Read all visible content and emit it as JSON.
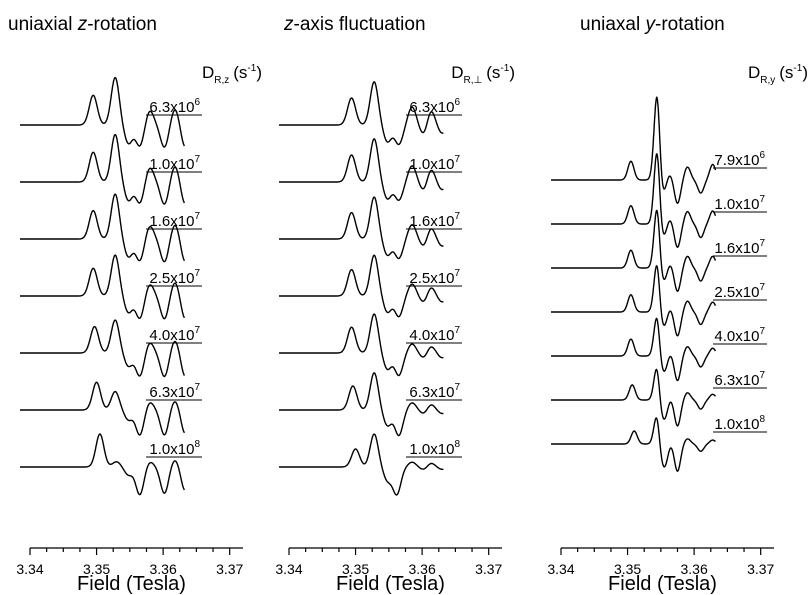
{
  "chart_data": [
    {
      "type": "line",
      "title": "uniaxial z-rotation",
      "title_parts": {
        "pre": "uniaxial ",
        "ital": "z",
        "post": "-rotation"
      },
      "xlabel": "Field (Tesla)",
      "xlim": [
        3.34,
        3.372
      ],
      "x_ticks": [
        "3.34",
        "3.35",
        "3.36",
        "3.37"
      ],
      "param_label": {
        "main": "D",
        "sub": "R,z",
        "unit": "(s",
        "unit_exp": "-1",
        "close": ")"
      },
      "series": [
        {
          "label": {
            "mant": "6.3x10",
            "exp": "6"
          },
          "peaks": [
            [
              3.3495,
              0.45
            ],
            [
              3.3528,
              0.72
            ],
            [
              3.3548,
              -0.28
            ],
            [
              3.3565,
              -0.32
            ],
            [
              3.358,
              0.22
            ],
            [
              3.3602,
              -0.34
            ],
            [
              3.3618,
              0.25
            ],
            [
              3.3633,
              -0.34
            ]
          ]
        },
        {
          "label": {
            "mant": "1.0x10",
            "exp": "7"
          },
          "peaks": [
            [
              3.3495,
              0.45
            ],
            [
              3.3528,
              0.72
            ],
            [
              3.3548,
              -0.28
            ],
            [
              3.3565,
              -0.32
            ],
            [
              3.358,
              0.22
            ],
            [
              3.3602,
              -0.34
            ],
            [
              3.3618,
              0.25
            ],
            [
              3.3633,
              -0.34
            ]
          ]
        },
        {
          "label": {
            "mant": "1.6x10",
            "exp": "7"
          },
          "peaks": [
            [
              3.3495,
              0.43
            ],
            [
              3.3528,
              0.68
            ],
            [
              3.3548,
              -0.27
            ],
            [
              3.3565,
              -0.33
            ],
            [
              3.358,
              0.2
            ],
            [
              3.3602,
              -0.35
            ],
            [
              3.3618,
              0.23
            ],
            [
              3.3633,
              -0.35
            ]
          ]
        },
        {
          "label": {
            "mant": "2.5x10",
            "exp": "7"
          },
          "peaks": [
            [
              3.3495,
              0.42
            ],
            [
              3.3528,
              0.62
            ],
            [
              3.3548,
              -0.25
            ],
            [
              3.3565,
              -0.34
            ],
            [
              3.358,
              0.18
            ],
            [
              3.3602,
              -0.35
            ],
            [
              3.3618,
              0.22
            ],
            [
              3.3633,
              -0.35
            ]
          ]
        },
        {
          "label": {
            "mant": "4.0x10",
            "exp": "7"
          },
          "peaks": [
            [
              3.3497,
              0.4
            ],
            [
              3.3528,
              0.5
            ],
            [
              3.3548,
              -0.2
            ],
            [
              3.3565,
              -0.35
            ],
            [
              3.358,
              0.16
            ],
            [
              3.3602,
              -0.36
            ],
            [
              3.3618,
              0.2
            ],
            [
              3.3633,
              -0.36
            ]
          ]
        },
        {
          "label": {
            "mant": "6.3x10",
            "exp": "7"
          },
          "peaks": [
            [
              3.35,
              0.42
            ],
            [
              3.3528,
              0.28
            ],
            [
              3.3548,
              -0.15
            ],
            [
              3.3565,
              -0.38
            ],
            [
              3.358,
              0.12
            ],
            [
              3.3602,
              -0.38
            ],
            [
              3.3618,
              0.15
            ],
            [
              3.3633,
              -0.36
            ]
          ]
        },
        {
          "label": {
            "mant": "1.0x10",
            "exp": "8"
          },
          "peaks": [
            [
              3.3505,
              0.5
            ],
            [
              3.353,
              0.08
            ],
            [
              3.3548,
              -0.12
            ],
            [
              3.3565,
              -0.42
            ],
            [
              3.358,
              0.08
            ],
            [
              3.3602,
              -0.4
            ],
            [
              3.3618,
              0.12
            ],
            [
              3.3633,
              -0.36
            ]
          ]
        }
      ]
    },
    {
      "type": "line",
      "title": "z-axis fluctuation",
      "title_parts": {
        "pre": "",
        "ital": "z",
        "post": "-axis fluctuation"
      },
      "xlabel": "Field (Tesla)",
      "xlim": [
        3.34,
        3.372
      ],
      "x_ticks": [
        "3.34",
        "3.35",
        "3.36",
        "3.37"
      ],
      "param_label": {
        "main": "D",
        "sub": "R,⊥",
        "unit": "(s",
        "unit_exp": "-1",
        "close": ")"
      },
      "series": [
        {
          "label": {
            "mant": "6.3x10",
            "exp": "6"
          },
          "peaks": [
            [
              3.3494,
              0.45
            ],
            [
              3.3528,
              0.72
            ],
            [
              3.3548,
              -0.28
            ],
            [
              3.3565,
              -0.32
            ],
            [
              3.3585,
              0.3
            ],
            [
              3.3613,
              0.26
            ],
            [
              3.3603,
              -0.18
            ],
            [
              3.363,
              -0.14
            ]
          ]
        },
        {
          "label": {
            "mant": "1.0x10",
            "exp": "7"
          },
          "peaks": [
            [
              3.3494,
              0.45
            ],
            [
              3.3528,
              0.72
            ],
            [
              3.3548,
              -0.28
            ],
            [
              3.3565,
              -0.3
            ],
            [
              3.3585,
              0.27
            ],
            [
              3.3613,
              0.23
            ],
            [
              3.3603,
              -0.16
            ],
            [
              3.363,
              -0.13
            ]
          ]
        },
        {
          "label": {
            "mant": "1.6x10",
            "exp": "7"
          },
          "peaks": [
            [
              3.3494,
              0.44
            ],
            [
              3.3528,
              0.7
            ],
            [
              3.3548,
              -0.27
            ],
            [
              3.3565,
              -0.32
            ],
            [
              3.3585,
              0.24
            ],
            [
              3.3613,
              0.2
            ],
            [
              3.3603,
              -0.14
            ],
            [
              3.363,
              -0.12
            ]
          ]
        },
        {
          "label": {
            "mant": "2.5x10",
            "exp": "7"
          },
          "peaks": [
            [
              3.3494,
              0.44
            ],
            [
              3.3528,
              0.68
            ],
            [
              3.3548,
              -0.27
            ],
            [
              3.3565,
              -0.34
            ],
            [
              3.3585,
              0.2
            ],
            [
              3.3613,
              0.16
            ],
            [
              3.3603,
              -0.12
            ],
            [
              3.363,
              -0.1
            ]
          ]
        },
        {
          "label": {
            "mant": "4.0x10",
            "exp": "7"
          },
          "peaks": [
            [
              3.3494,
              0.43
            ],
            [
              3.3528,
              0.65
            ],
            [
              3.3548,
              -0.27
            ],
            [
              3.3565,
              -0.37
            ],
            [
              3.3585,
              0.15
            ],
            [
              3.3613,
              0.12
            ],
            [
              3.3603,
              -0.09
            ],
            [
              3.363,
              -0.08
            ]
          ]
        },
        {
          "label": {
            "mant": "6.3x10",
            "exp": "7"
          },
          "peaks": [
            [
              3.3496,
              0.4
            ],
            [
              3.3528,
              0.62
            ],
            [
              3.3548,
              -0.26
            ],
            [
              3.3565,
              -0.42
            ],
            [
              3.3585,
              0.12
            ],
            [
              3.3613,
              0.1
            ],
            [
              3.3603,
              -0.07
            ],
            [
              3.363,
              -0.06
            ]
          ]
        },
        {
          "label": {
            "mant": "1.0x10",
            "exp": "8"
          },
          "peaks": [
            [
              3.35,
              0.3
            ],
            [
              3.3528,
              0.55
            ],
            [
              3.3548,
              -0.22
            ],
            [
              3.3562,
              -0.45
            ],
            [
              3.3585,
              0.08
            ],
            [
              3.3613,
              0.07
            ],
            [
              3.3603,
              -0.05
            ],
            [
              3.363,
              -0.04
            ]
          ]
        }
      ]
    },
    {
      "type": "line",
      "title": "uniaxal y-rotation",
      "title_parts": {
        "pre": "uniaxal ",
        "ital": "y",
        "post": "-rotation"
      },
      "xlabel": "Field (Tesla)",
      "xlim": [
        3.34,
        3.372
      ],
      "x_ticks": [
        "3.34",
        "3.35",
        "3.36",
        "3.37"
      ],
      "param_label": {
        "main": "D",
        "sub": "R,y",
        "unit": "(s",
        "unit_exp": "-1",
        "close": ")"
      },
      "series": [
        {
          "label": {
            "mant": "7.9x10",
            "exp": "6"
          },
          "peaks": [
            [
              3.3505,
              0.72
            ],
            [
              3.3545,
              4.2
            ],
            [
              3.3549,
              -1.8
            ],
            [
              3.3552,
              0.35
            ],
            [
              3.3557,
              -0.4
            ],
            [
              3.3562,
              0.35
            ],
            [
              3.3575,
              -0.9
            ],
            [
              3.359,
              0.5
            ],
            [
              3.361,
              -0.5
            ],
            [
              3.3628,
              0.6
            ],
            [
              3.3643,
              -0.5
            ]
          ]
        },
        {
          "label": {
            "mant": "1.0x10",
            "exp": "7"
          },
          "peaks": [
            [
              3.3505,
              0.7
            ],
            [
              3.3545,
              3.6
            ],
            [
              3.3549,
              -1.6
            ],
            [
              3.3552,
              0.33
            ],
            [
              3.3557,
              -0.45
            ],
            [
              3.3562,
              0.33
            ],
            [
              3.3575,
              -0.9
            ],
            [
              3.359,
              0.48
            ],
            [
              3.361,
              -0.52
            ],
            [
              3.3628,
              0.5
            ],
            [
              3.3643,
              -0.46
            ]
          ]
        },
        {
          "label": {
            "mant": "1.6x10",
            "exp": "7"
          },
          "peaks": [
            [
              3.3505,
              0.68
            ],
            [
              3.3545,
              3.0
            ],
            [
              3.3549,
              -1.4
            ],
            [
              3.3552,
              0.3
            ],
            [
              3.3557,
              -0.5
            ],
            [
              3.3562,
              0.3
            ],
            [
              3.3575,
              -0.9
            ],
            [
              3.359,
              0.45
            ],
            [
              3.361,
              -0.5
            ],
            [
              3.3628,
              0.45
            ],
            [
              3.3643,
              -0.4
            ]
          ]
        },
        {
          "label": {
            "mant": "2.5x10",
            "exp": "7"
          },
          "peaks": [
            [
              3.3505,
              0.66
            ],
            [
              3.3545,
              2.5
            ],
            [
              3.3549,
              -1.3
            ],
            [
              3.3552,
              0.28
            ],
            [
              3.3557,
              -0.55
            ],
            [
              3.3562,
              0.28
            ],
            [
              3.3575,
              -0.92
            ],
            [
              3.359,
              0.42
            ],
            [
              3.361,
              -0.48
            ],
            [
              3.3628,
              0.38
            ],
            [
              3.3643,
              -0.34
            ]
          ]
        },
        {
          "label": {
            "mant": "4.0x10",
            "exp": "7"
          },
          "peaks": [
            [
              3.3505,
              0.65
            ],
            [
              3.3545,
              2.1
            ],
            [
              3.3549,
              -1.2
            ],
            [
              3.3552,
              0.25
            ],
            [
              3.3557,
              -0.6
            ],
            [
              3.3562,
              0.24
            ],
            [
              3.3575,
              -0.95
            ],
            [
              3.359,
              0.36
            ],
            [
              3.361,
              -0.42
            ],
            [
              3.3628,
              0.3
            ],
            [
              3.3643,
              -0.28
            ]
          ]
        },
        {
          "label": {
            "mant": "6.3x10",
            "exp": "7"
          },
          "peaks": [
            [
              3.3507,
              0.58
            ],
            [
              3.3545,
              1.8
            ],
            [
              3.3549,
              -1.15
            ],
            [
              3.3552,
              0.2
            ],
            [
              3.3557,
              -0.7
            ],
            [
              3.3562,
              0.2
            ],
            [
              3.3575,
              -1.0
            ],
            [
              3.359,
              0.28
            ],
            [
              3.361,
              -0.35
            ],
            [
              3.3628,
              0.22
            ],
            [
              3.3643,
              -0.2
            ]
          ]
        },
        {
          "label": {
            "mant": "1.0x10",
            "exp": "8"
          },
          "peaks": [
            [
              3.351,
              0.5
            ],
            [
              3.3545,
              1.6
            ],
            [
              3.3549,
              -1.1
            ],
            [
              3.3552,
              0.15
            ],
            [
              3.3557,
              -0.8
            ],
            [
              3.3562,
              0.15
            ],
            [
              3.3575,
              -1.05
            ],
            [
              3.359,
              0.2
            ],
            [
              3.361,
              -0.28
            ],
            [
              3.3628,
              0.15
            ],
            [
              3.3643,
              -0.12
            ]
          ]
        }
      ]
    }
  ]
}
